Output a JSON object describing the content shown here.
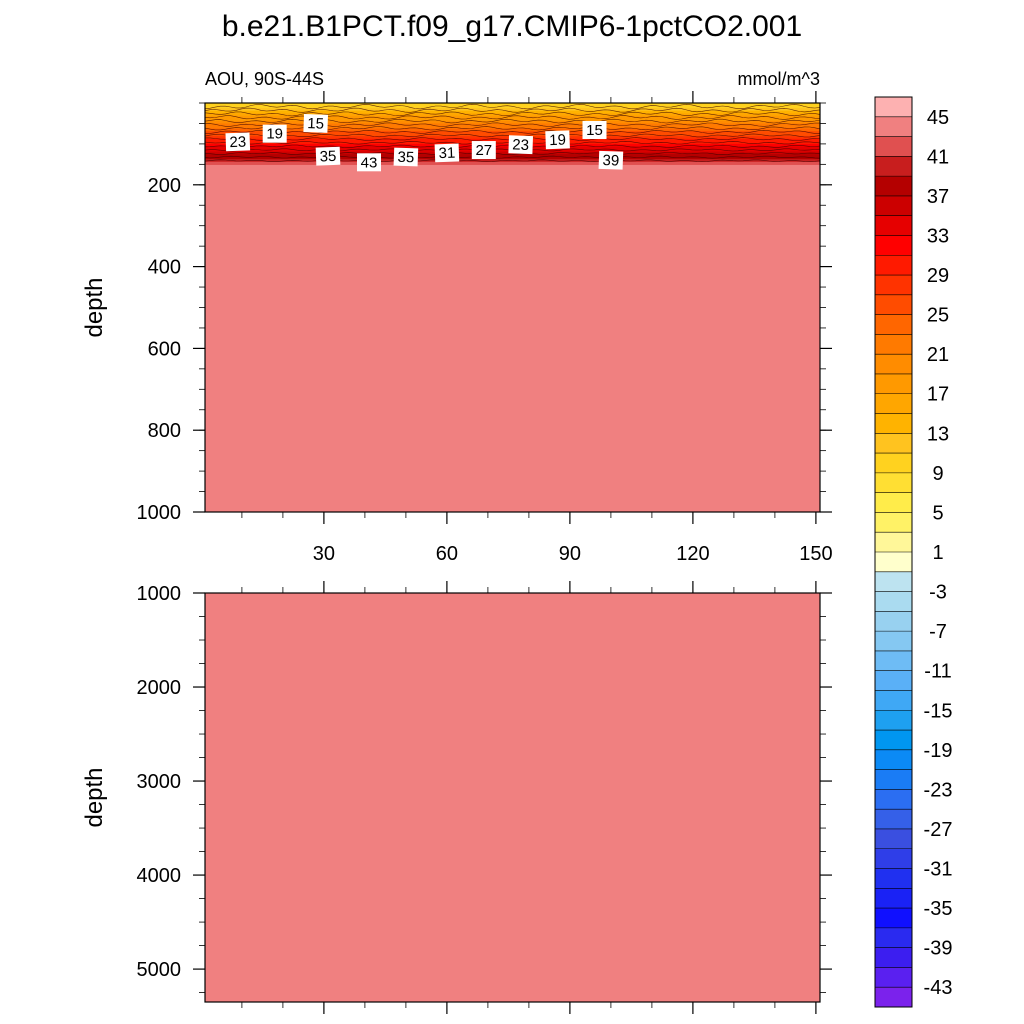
{
  "title": "b.e21.B1PCT.f09_g17.CMIP6-1pctCO2.001",
  "subtitle_left": "AOU, 90S-44S",
  "subtitle_right": "mmol/m^3",
  "chart_data": [
    {
      "type": "heatmap",
      "panel": "upper",
      "ylabel": "depth",
      "y_reversed": true,
      "ylim": [
        0,
        1000
      ],
      "y_ticks": [
        200,
        400,
        600,
        800,
        1000
      ],
      "xlim": [
        1,
        151
      ],
      "x_ticks": [
        30,
        60,
        90,
        120,
        150
      ],
      "surface_layer": {
        "bottom_depth": 150,
        "surface_value": 10,
        "bottom_value": 44
      },
      "deep_fill_value": 47,
      "contour_labels": [
        {
          "x": 9,
          "depth": 95,
          "label": "23"
        },
        {
          "x": 18,
          "depth": 75,
          "label": "19"
        },
        {
          "x": 28,
          "depth": 50,
          "label": "15"
        },
        {
          "x": 31,
          "depth": 130,
          "label": "35"
        },
        {
          "x": 41,
          "depth": 145,
          "label": "43"
        },
        {
          "x": 50,
          "depth": 132,
          "label": "35"
        },
        {
          "x": 60,
          "depth": 122,
          "label": "31"
        },
        {
          "x": 69,
          "depth": 115,
          "label": "27"
        },
        {
          "x": 78,
          "depth": 102,
          "label": "23"
        },
        {
          "x": 87,
          "depth": 90,
          "label": "19"
        },
        {
          "x": 96,
          "depth": 66,
          "label": "15"
        },
        {
          "x": 100,
          "depth": 140,
          "label": "39"
        }
      ]
    },
    {
      "type": "heatmap",
      "panel": "lower",
      "ylabel": "depth",
      "y_reversed": true,
      "ylim": [
        1000,
        5350
      ],
      "y_ticks": [
        1000,
        2000,
        3000,
        4000,
        5000
      ],
      "xlim": [
        1,
        151
      ],
      "x_ticks": [
        30,
        60,
        90,
        120,
        150
      ],
      "fill_value": 47
    }
  ],
  "colorbar": {
    "labels": [
      "45",
      "41",
      "37",
      "33",
      "29",
      "25",
      "21",
      "17",
      "13",
      "9",
      "5",
      "1",
      "-3",
      "-7",
      "-11",
      "-15",
      "-19",
      "-23",
      "-27",
      "-31",
      "-35",
      "-39",
      "-43"
    ],
    "colors": [
      "#fdb1b1",
      "#f08080",
      "#e05050",
      "#c81e1e",
      "#b40000",
      "#cc0000",
      "#e60000",
      "#ff0000",
      "#ff1a00",
      "#ff3300",
      "#ff4c00",
      "#ff6600",
      "#ff7a00",
      "#ff8c00",
      "#ff9900",
      "#ffa600",
      "#ffb300",
      "#ffc31f",
      "#ffd21f",
      "#ffdf33",
      "#ffec4a",
      "#fff266",
      "#fff799",
      "#ffffcc",
      "#bde3f0",
      "#aadbf0",
      "#98d1f0",
      "#85c8f2",
      "#6ebcf5",
      "#5ab0f7",
      "#3fa8f5",
      "#1ea0f0",
      "#0096f0",
      "#0b8af5",
      "#1a7cf5",
      "#2b6ef2",
      "#3560e8",
      "#3a4fe0",
      "#2f3ee8",
      "#2030f0",
      "#1a22f5",
      "#1010ff",
      "#2a2af0",
      "#3c1ef0",
      "#5a20f0",
      "#7b22ec"
    ]
  }
}
